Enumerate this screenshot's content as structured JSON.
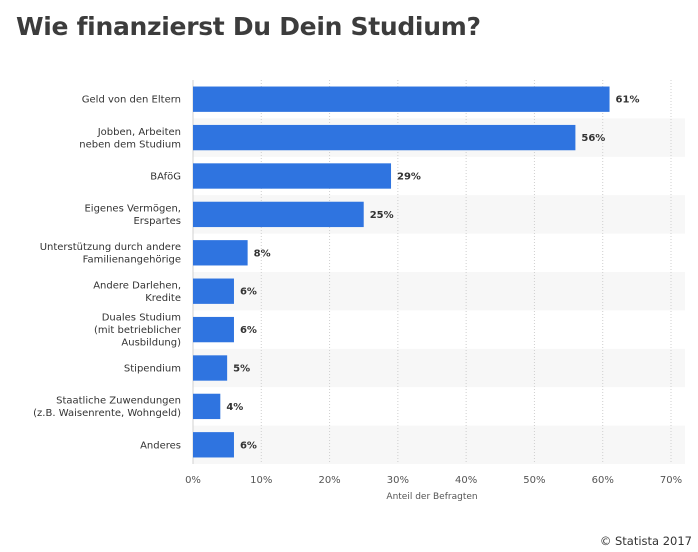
{
  "chart_data": {
    "type": "bar",
    "orientation": "horizontal",
    "title": "Wie finanzierst Du Dein Studium?",
    "xlabel": "Anteil der Befragten",
    "ylabel": "",
    "xlim": [
      0,
      70
    ],
    "ticks": [
      0,
      10,
      20,
      30,
      40,
      50,
      60,
      70
    ],
    "tick_labels": [
      "0%",
      "10%",
      "20%",
      "30%",
      "40%",
      "50%",
      "60%",
      "70%"
    ],
    "grid": true,
    "categories": [
      [
        "Geld von den Eltern"
      ],
      [
        "Jobben, Arbeiten",
        "neben dem Studium"
      ],
      [
        "BAföG"
      ],
      [
        "Eigenes Vermögen,",
        "Erspartes"
      ],
      [
        "Unterstützung durch andere",
        "Familienangehörige"
      ],
      [
        "Andere Darlehen,",
        "Kredite"
      ],
      [
        "Duales Studium",
        "(mit betrieblicher",
        "Ausbildung)"
      ],
      [
        "Stipendium"
      ],
      [
        "Staatliche Zuwendungen",
        "(z.B. Waisenrente, Wohngeld)"
      ],
      [
        "Anderes"
      ]
    ],
    "values": [
      61,
      56,
      29,
      25,
      8,
      6,
      6,
      5,
      4,
      6
    ],
    "value_labels": [
      "61%",
      "56%",
      "29%",
      "25%",
      "8%",
      "6%",
      "6%",
      "5%",
      "4%",
      "6%"
    ],
    "bar_color": "#2f74e0"
  },
  "footer": {
    "source": "© Statista 2017"
  }
}
